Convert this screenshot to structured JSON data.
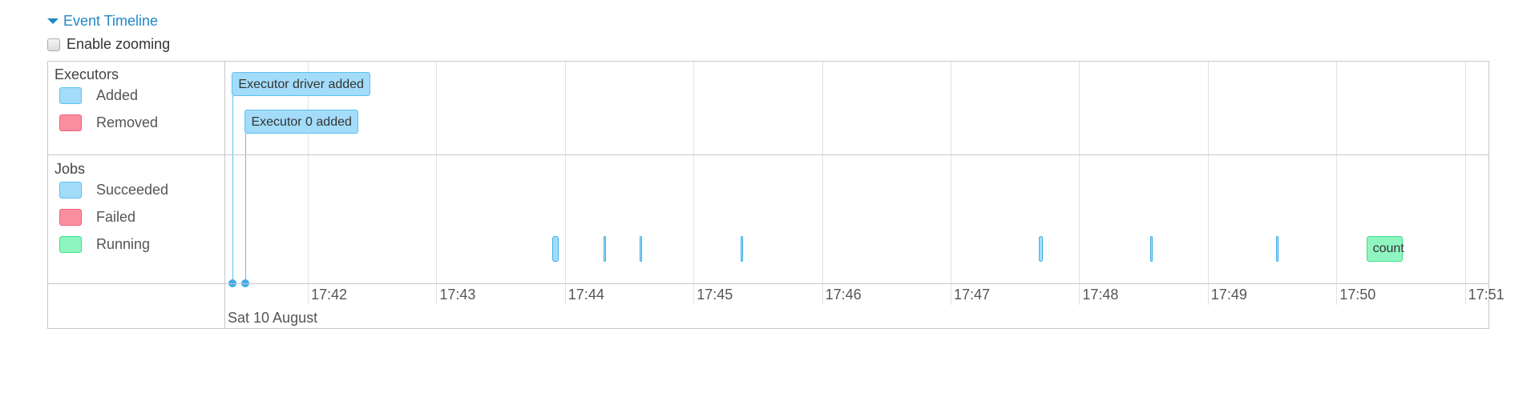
{
  "header": {
    "title": "Event Timeline",
    "caret_icon": "caret-down-icon"
  },
  "zooming": {
    "label": "Enable zooming",
    "checked": false
  },
  "legend": {
    "executors": {
      "title": "Executors",
      "items": [
        {
          "label": "Added",
          "color": "#a3dcf9"
        },
        {
          "label": "Removed",
          "color": "#fb8f9f"
        }
      ]
    },
    "jobs": {
      "title": "Jobs",
      "items": [
        {
          "label": "Succeeded",
          "color": "#a3dcf9"
        },
        {
          "label": "Failed",
          "color": "#fb8f9f"
        },
        {
          "label": "Running",
          "color": "#8ff5c0"
        }
      ]
    }
  },
  "axis": {
    "date_label": "Sat 10 August",
    "ticks": [
      "17:42",
      "17:43",
      "17:44",
      "17:45",
      "17:46",
      "17:47",
      "17:48",
      "17:49",
      "17:50",
      "17:51"
    ]
  },
  "executor_events": [
    {
      "label": "Executor driver added",
      "time": "17:41:25",
      "status": "added"
    },
    {
      "label": "Executor 0 added",
      "time": "17:41:31",
      "status": "added"
    }
  ],
  "job_events": [
    {
      "start": "17:43:54",
      "end": "17:43:57",
      "status": "succeeded",
      "label": ""
    },
    {
      "start": "17:44:18",
      "end": "17:44:18",
      "status": "succeeded",
      "label": ""
    },
    {
      "start": "17:44:35",
      "end": "17:44:35",
      "status": "succeeded",
      "label": ""
    },
    {
      "start": "17:45:22",
      "end": "17:45:22",
      "status": "succeeded",
      "label": ""
    },
    {
      "start": "17:47:41",
      "end": "17:47:43",
      "status": "succeeded",
      "label": ""
    },
    {
      "start": "17:48:33",
      "end": "17:48:33",
      "status": "succeeded",
      "label": ""
    },
    {
      "start": "17:49:32",
      "end": "17:49:32",
      "status": "succeeded",
      "label": ""
    },
    {
      "start": "17:50:14",
      "end": "17:50:31",
      "status": "running",
      "label": "count"
    }
  ]
}
